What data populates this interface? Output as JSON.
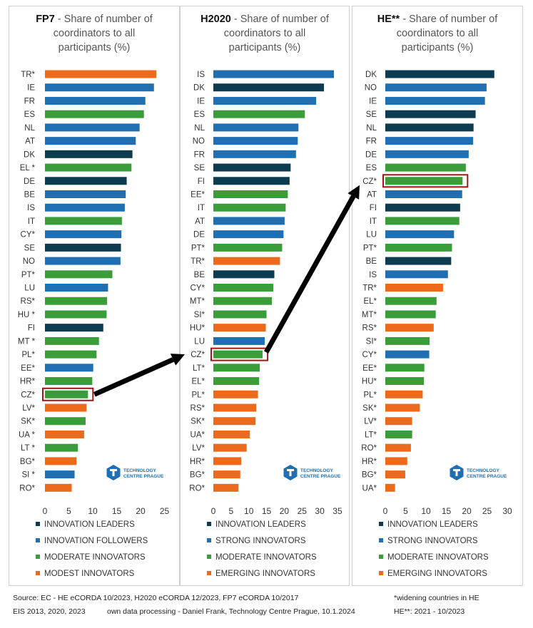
{
  "colors": {
    "leaders": "#0d3b4f",
    "followers": "#1f6fb2",
    "moderate": "#3a9d3a",
    "modest": "#ec6a1c",
    "highlight": "#a31515",
    "arrow": "#000000"
  },
  "logo": {
    "line1": "TECHNOLOGY",
    "line2": "CENTRE PRAGUE",
    "icon": "tc-prague-logo-icon"
  },
  "chart_data": [
    {
      "type": "bar",
      "orientation": "horizontal",
      "title_bold": "FP7",
      "title": " - Share of number of coordinators to all participants (%)",
      "xlim": [
        0,
        25
      ],
      "xticks": [
        0,
        5,
        10,
        15,
        20,
        25
      ],
      "grid": false,
      "legend_position": "bottom",
      "legend": [
        {
          "label": "INNOVATION LEADERS",
          "group": "leaders"
        },
        {
          "label": "INNOVATION FOLLOWERS",
          "group": "followers"
        },
        {
          "label": "MODERATE INNOVATORS",
          "group": "moderate"
        },
        {
          "label": "MODEST INNOVATORS",
          "group": "modest"
        }
      ],
      "highlight": "CZ*",
      "categories": [
        "TR*",
        "IE",
        "FR",
        "ES",
        "NL",
        "AT",
        "DK",
        "EL *",
        "DE",
        "BE",
        "IS",
        "IT",
        "CY*",
        "SE",
        "NO",
        "PT*",
        "LU",
        "RS*",
        "HU *",
        "FI",
        "MT *",
        "PL*",
        "EE*",
        "HR*",
        "CZ*",
        "LV*",
        "SK*",
        "UA *",
        "LT *",
        "BG*",
        "SI *",
        "RO*"
      ],
      "values": [
        23.3,
        22.8,
        21.0,
        20.7,
        19.8,
        19.0,
        18.3,
        18.1,
        17.1,
        16.9,
        16.7,
        16.1,
        16.0,
        15.9,
        15.8,
        14.1,
        13.2,
        13.0,
        12.9,
        12.2,
        11.3,
        10.8,
        10.1,
        9.9,
        9.0,
        8.7,
        8.5,
        8.2,
        6.9,
        6.6,
        6.2,
        5.6
      ],
      "groups": [
        "modest",
        "followers",
        "followers",
        "moderate",
        "followers",
        "followers",
        "leaders",
        "moderate",
        "leaders",
        "followers",
        "followers",
        "moderate",
        "followers",
        "leaders",
        "followers",
        "moderate",
        "followers",
        "moderate",
        "moderate",
        "leaders",
        "moderate",
        "moderate",
        "followers",
        "moderate",
        "moderate",
        "modest",
        "moderate",
        "modest",
        "moderate",
        "modest",
        "followers",
        "modest"
      ]
    },
    {
      "type": "bar",
      "orientation": "horizontal",
      "title_bold": "H2020",
      "title": " - Share of number of coordinators to all participants (%)",
      "xlim": [
        0,
        35
      ],
      "xticks": [
        0,
        5,
        10,
        15,
        20,
        25,
        30,
        35
      ],
      "grid": false,
      "legend_position": "bottom",
      "legend": [
        {
          "label": "INNOVATION LEADERS",
          "group": "leaders"
        },
        {
          "label": "STRONG INNOVATORS",
          "group": "followers"
        },
        {
          "label": "MODERATE INNOVATORS",
          "group": "moderate"
        },
        {
          "label": "EMERGING INNOVATORS",
          "group": "modest"
        }
      ],
      "highlight": "CZ*",
      "categories": [
        "IS",
        "DK",
        "IE",
        "ES",
        "NL",
        "NO",
        "FR",
        "SE",
        "FI",
        "EE*",
        "IT",
        "AT",
        "DE",
        "PT*",
        "TR*",
        "BE",
        "CY*",
        "MT*",
        "SI*",
        "HU*",
        "LU",
        "CZ*",
        "LT*",
        "EL*",
        "PL*",
        "RS*",
        "SK*",
        "UA*",
        "LV*",
        "HR*",
        "BG*",
        "RO*"
      ],
      "values": [
        34.0,
        31.2,
        29.0,
        25.8,
        24.0,
        23.8,
        23.3,
        21.8,
        21.5,
        21.0,
        20.4,
        20.1,
        19.8,
        19.4,
        18.8,
        17.2,
        16.9,
        16.5,
        15.0,
        14.8,
        14.5,
        13.9,
        13.1,
        12.9,
        12.6,
        12.1,
        11.9,
        10.3,
        9.4,
        7.9,
        7.6,
        7.1
      ],
      "groups": [
        "followers",
        "leaders",
        "followers",
        "moderate",
        "followers",
        "followers",
        "followers",
        "leaders",
        "leaders",
        "moderate",
        "moderate",
        "followers",
        "followers",
        "moderate",
        "modest",
        "leaders",
        "moderate",
        "moderate",
        "moderate",
        "modest",
        "followers",
        "moderate",
        "moderate",
        "moderate",
        "modest",
        "modest",
        "modest",
        "modest",
        "modest",
        "modest",
        "modest",
        "modest"
      ]
    },
    {
      "type": "bar",
      "orientation": "horizontal",
      "title_bold": "HE**",
      "title": " - Share of number of coordinators to all participants (%)",
      "xlim": [
        0,
        30
      ],
      "xticks": [
        0,
        5,
        10,
        15,
        20,
        25,
        30
      ],
      "grid": false,
      "legend_position": "bottom",
      "legend": [
        {
          "label": "INNOVATION LEADERS",
          "group": "leaders"
        },
        {
          "label": "STRONG INNOVATORS",
          "group": "followers"
        },
        {
          "label": "MODERATE INNOVATORS",
          "group": "moderate"
        },
        {
          "label": "EMERGING INNOVATORS",
          "group": "modest"
        }
      ],
      "highlight": "CZ*",
      "categories": [
        "DK",
        "NO",
        "IE",
        "SE",
        "NL",
        "FR",
        "DE",
        "ES",
        "CZ*",
        "AT",
        "FI",
        "IT",
        "LU",
        "PT*",
        "BE",
        "IS",
        "TR*",
        "EL*",
        "MT*",
        "RS*",
        "SI*",
        "CY*",
        "EE*",
        "HU*",
        "PL*",
        "SK*",
        "LV*",
        "LT*",
        "RO*",
        "HR*",
        "BG*",
        "UA*"
      ],
      "values": [
        26.8,
        24.9,
        24.5,
        22.2,
        21.7,
        21.6,
        20.5,
        19.8,
        19.0,
        18.9,
        18.4,
        18.2,
        16.9,
        16.4,
        16.2,
        15.4,
        14.2,
        12.6,
        12.4,
        11.9,
        10.9,
        10.8,
        9.6,
        9.5,
        9.2,
        8.5,
        6.6,
        6.6,
        6.3,
        5.4,
        4.9,
        2.4
      ],
      "groups": [
        "leaders",
        "followers",
        "followers",
        "leaders",
        "leaders",
        "followers",
        "followers",
        "moderate",
        "moderate",
        "followers",
        "leaders",
        "moderate",
        "followers",
        "moderate",
        "leaders",
        "followers",
        "modest",
        "moderate",
        "moderate",
        "modest",
        "moderate",
        "followers",
        "moderate",
        "moderate",
        "modest",
        "modest",
        "modest",
        "moderate",
        "modest",
        "modest",
        "modest",
        "modest"
      ]
    }
  ],
  "footer": {
    "source": "Source: EC - HE eCORDA 10/2023, H2020 eCORDA 12/2023, FP7 eCORDA 10/2017",
    "eis": "EIS 2013, 2020, 2023",
    "processing": "own data processing - Daniel Frank, Technology Centre Prague, 10.1.2024",
    "widening": "*widening countries in HE",
    "he_period": "HE**: 2021 - 10/2023"
  }
}
